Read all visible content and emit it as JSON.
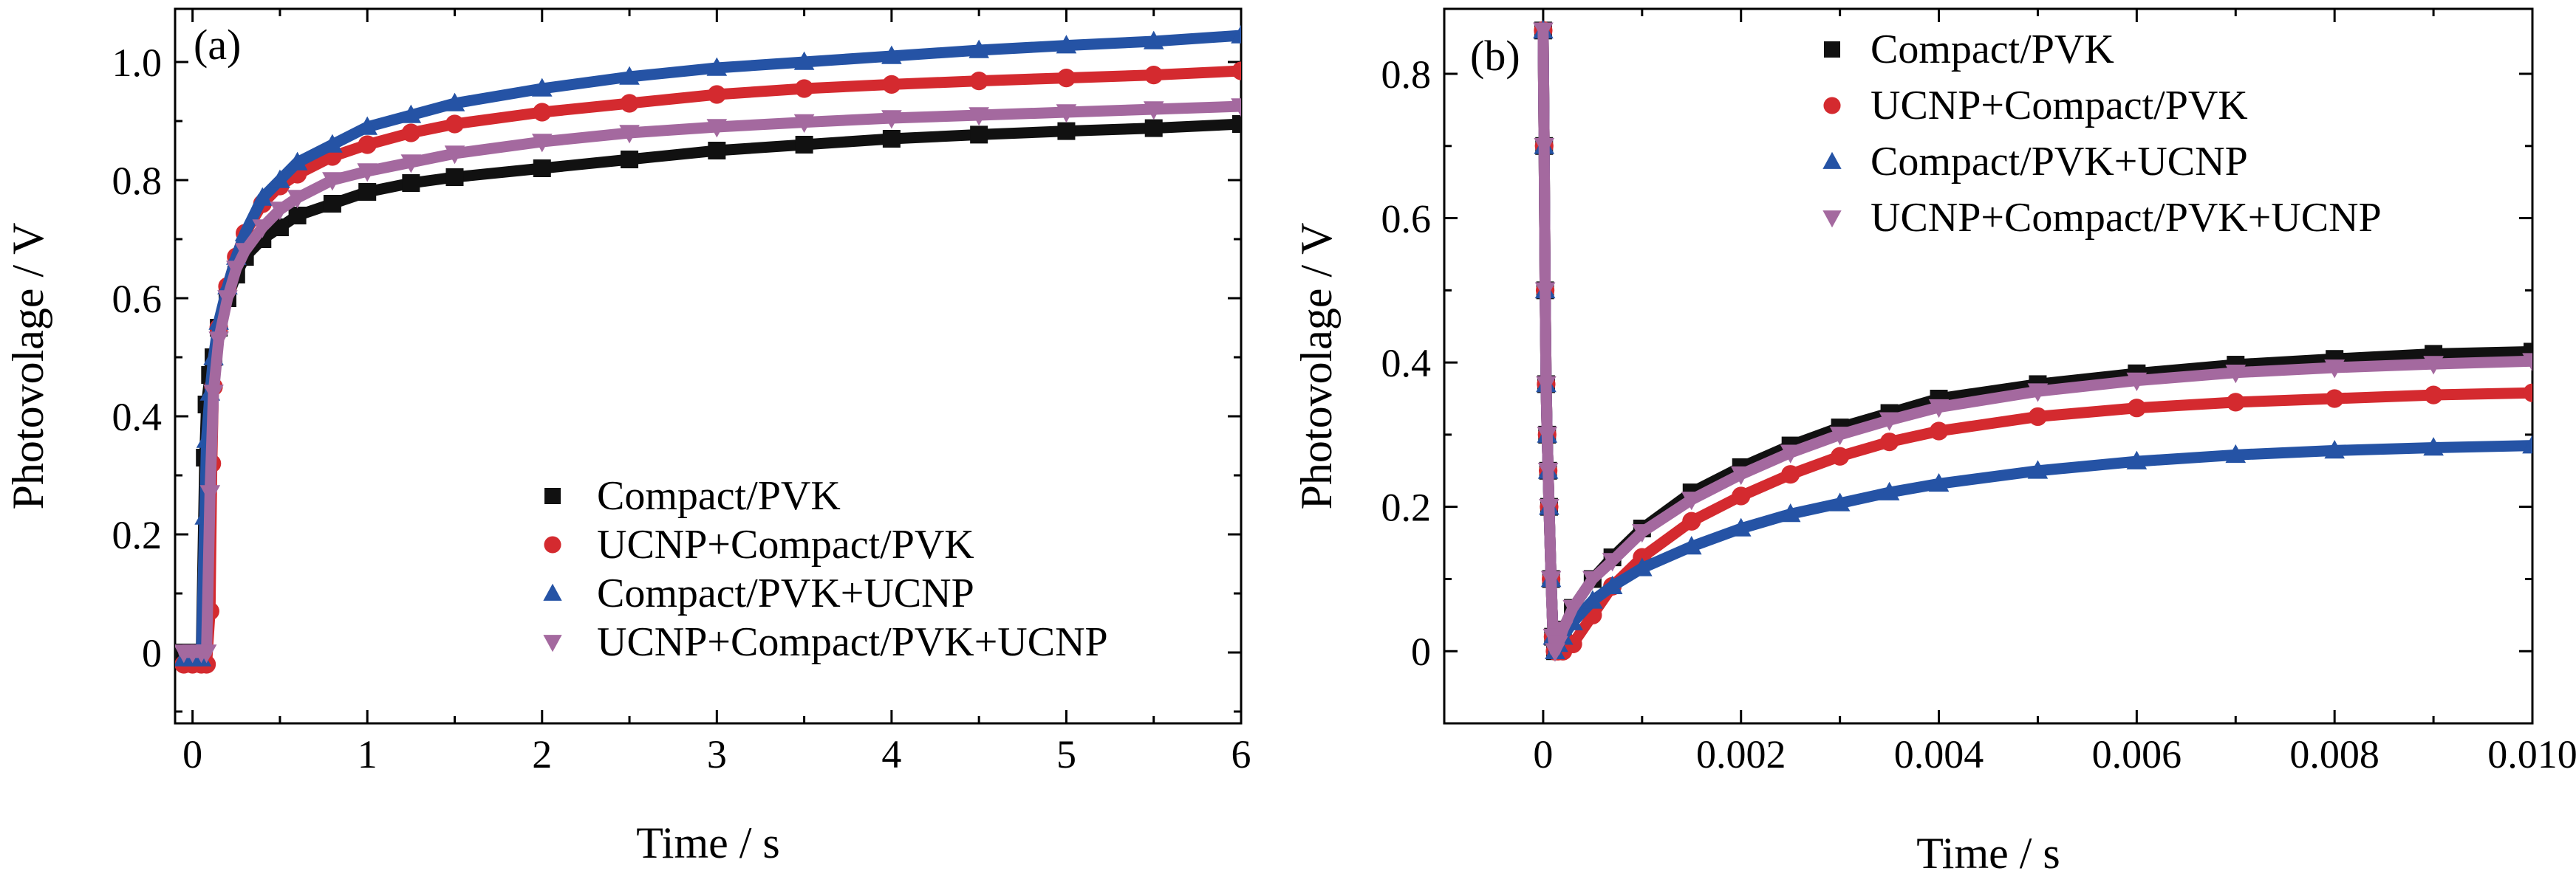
{
  "chart_data": [
    {
      "type": "scatter",
      "panel_label": "(a)",
      "xlabel": "Time / s",
      "ylabel": "Photovolage / V",
      "xlim": [
        -0.1,
        6
      ],
      "ylim": [
        -0.12,
        1.09
      ],
      "x_ticks": [
        0,
        1,
        2,
        3,
        4,
        5,
        6
      ],
      "x_tick_labels": [
        "0",
        "1",
        "2",
        "3",
        "4",
        "5",
        "6"
      ],
      "y_ticks": [
        0,
        0.2,
        0.4,
        0.6,
        0.8,
        1.0
      ],
      "y_tick_labels": [
        "0",
        "0.2",
        "0.4",
        "0.6",
        "0.8",
        "1.0"
      ],
      "grid": false,
      "legend_position": "bottom-right",
      "series": [
        {
          "name": "Compact/PVK",
          "marker": "square",
          "color": "#111111",
          "x": [
            -0.05,
            0.0,
            0.05,
            0.07,
            0.08,
            0.1,
            0.12,
            0.15,
            0.2,
            0.25,
            0.3,
            0.4,
            0.5,
            0.6,
            0.8,
            1.0,
            1.25,
            1.5,
            2.0,
            2.5,
            3.0,
            3.5,
            4.0,
            4.5,
            5.0,
            5.5,
            6.0
          ],
          "y": [
            0.0,
            0.0,
            0.0,
            0.33,
            0.42,
            0.47,
            0.5,
            0.55,
            0.6,
            0.64,
            0.67,
            0.7,
            0.72,
            0.74,
            0.76,
            0.78,
            0.795,
            0.805,
            0.82,
            0.835,
            0.85,
            0.86,
            0.87,
            0.877,
            0.883,
            0.888,
            0.895
          ]
        },
        {
          "name": "UCNP+Compact/PVK",
          "marker": "circle",
          "color": "#d42a2f",
          "x": [
            -0.05,
            0.0,
            0.05,
            0.08,
            0.1,
            0.11,
            0.12,
            0.15,
            0.2,
            0.25,
            0.3,
            0.4,
            0.5,
            0.6,
            0.8,
            1.0,
            1.25,
            1.5,
            2.0,
            2.5,
            3.0,
            3.5,
            4.0,
            4.5,
            5.0,
            5.5,
            6.0
          ],
          "y": [
            -0.02,
            -0.02,
            -0.02,
            -0.02,
            0.07,
            0.32,
            0.45,
            0.55,
            0.62,
            0.67,
            0.71,
            0.76,
            0.79,
            0.81,
            0.84,
            0.86,
            0.88,
            0.895,
            0.915,
            0.93,
            0.945,
            0.955,
            0.962,
            0.968,
            0.973,
            0.978,
            0.985
          ]
        },
        {
          "name": "Compact/PVK+UCNP",
          "marker": "triangle-up",
          "color": "#2553a5",
          "x": [
            -0.05,
            0.0,
            0.05,
            0.07,
            0.08,
            0.1,
            0.12,
            0.15,
            0.2,
            0.25,
            0.3,
            0.4,
            0.5,
            0.6,
            0.8,
            1.0,
            1.25,
            1.5,
            2.0,
            2.5,
            3.0,
            3.5,
            4.0,
            4.5,
            5.0,
            5.5,
            6.0
          ],
          "y": [
            -0.01,
            -0.01,
            -0.01,
            0.23,
            0.36,
            0.44,
            0.5,
            0.56,
            0.62,
            0.67,
            0.71,
            0.77,
            0.8,
            0.83,
            0.86,
            0.89,
            0.91,
            0.93,
            0.955,
            0.975,
            0.99,
            1.0,
            1.01,
            1.02,
            1.028,
            1.035,
            1.045
          ]
        },
        {
          "name": "UCNP+Compact/PVK+UCNP",
          "marker": "triangle-down",
          "color": "#a4699f",
          "x": [
            -0.05,
            0.0,
            0.05,
            0.08,
            0.1,
            0.12,
            0.15,
            0.2,
            0.25,
            0.3,
            0.4,
            0.5,
            0.6,
            0.8,
            1.0,
            1.25,
            1.5,
            2.0,
            2.5,
            3.0,
            3.5,
            4.0,
            4.5,
            5.0,
            5.5,
            6.0
          ],
          "y": [
            0.0,
            0.0,
            0.0,
            0.0,
            0.27,
            0.44,
            0.53,
            0.6,
            0.65,
            0.68,
            0.72,
            0.75,
            0.77,
            0.8,
            0.815,
            0.83,
            0.845,
            0.865,
            0.88,
            0.89,
            0.898,
            0.905,
            0.91,
            0.915,
            0.92,
            0.925
          ]
        }
      ]
    },
    {
      "type": "scatter",
      "panel_label": "(b)",
      "xlabel": "Time / s",
      "ylabel": "Photovolage / V",
      "xlim": [
        -0.001,
        0.01
      ],
      "ylim": [
        -0.1,
        0.89
      ],
      "x_ticks": [
        0,
        0.002,
        0.004,
        0.006,
        0.008,
        0.01
      ],
      "x_tick_labels": [
        "0",
        "0.002",
        "0.004",
        "0.006",
        "0.008",
        "0.010"
      ],
      "y_ticks": [
        0,
        0.2,
        0.4,
        0.6,
        0.8
      ],
      "y_tick_labels": [
        "0",
        "0.2",
        "0.4",
        "0.6",
        "0.8"
      ],
      "grid": false,
      "legend_position": "top-right",
      "series": [
        {
          "name": "Compact/PVK",
          "marker": "square",
          "color": "#111111",
          "x": [
            0.0,
            1e-05,
            2e-05,
            3e-05,
            4e-05,
            5e-05,
            6e-05,
            8e-05,
            0.0001,
            0.00012,
            0.00015,
            0.0002,
            0.0003,
            0.0005,
            0.0007,
            0.001,
            0.0015,
            0.002,
            0.0025,
            0.003,
            0.0035,
            0.004,
            0.005,
            0.006,
            0.007,
            0.008,
            0.009,
            0.01
          ],
          "y": [
            0.86,
            0.7,
            0.5,
            0.37,
            0.3,
            0.25,
            0.2,
            0.1,
            0.02,
            0.0,
            0.01,
            0.03,
            0.06,
            0.1,
            0.13,
            0.17,
            0.22,
            0.255,
            0.285,
            0.31,
            0.33,
            0.35,
            0.37,
            0.385,
            0.397,
            0.405,
            0.412,
            0.415
          ]
        },
        {
          "name": "UCNP+Compact/PVK",
          "marker": "circle",
          "color": "#d42a2f",
          "x": [
            0.0,
            1e-05,
            2e-05,
            3e-05,
            4e-05,
            5e-05,
            6e-05,
            8e-05,
            0.0001,
            0.00012,
            0.00015,
            0.0002,
            0.0003,
            0.0005,
            0.0007,
            0.001,
            0.0015,
            0.002,
            0.0025,
            0.003,
            0.0035,
            0.004,
            0.005,
            0.006,
            0.007,
            0.008,
            0.009,
            0.01
          ],
          "y": [
            0.86,
            0.7,
            0.5,
            0.37,
            0.3,
            0.25,
            0.2,
            0.1,
            0.02,
            0.0,
            0.0,
            0.0,
            0.01,
            0.05,
            0.09,
            0.13,
            0.18,
            0.215,
            0.245,
            0.27,
            0.29,
            0.305,
            0.325,
            0.337,
            0.345,
            0.35,
            0.355,
            0.358
          ]
        },
        {
          "name": "Compact/PVK+UCNP",
          "marker": "triangle-up",
          "color": "#2553a5",
          "x": [
            0.0,
            1e-05,
            2e-05,
            3e-05,
            4e-05,
            5e-05,
            6e-05,
            8e-05,
            0.0001,
            0.00012,
            0.00015,
            0.0002,
            0.0003,
            0.0005,
            0.0007,
            0.001,
            0.0015,
            0.002,
            0.0025,
            0.003,
            0.0035,
            0.004,
            0.005,
            0.006,
            0.007,
            0.008,
            0.009,
            0.01
          ],
          "y": [
            0.86,
            0.7,
            0.5,
            0.37,
            0.3,
            0.25,
            0.2,
            0.1,
            0.02,
            0.0,
            0.01,
            0.02,
            0.04,
            0.07,
            0.09,
            0.115,
            0.145,
            0.17,
            0.19,
            0.205,
            0.22,
            0.232,
            0.25,
            0.263,
            0.272,
            0.278,
            0.282,
            0.285
          ]
        },
        {
          "name": "UCNP+Compact/PVK+UCNP",
          "marker": "triangle-down",
          "color": "#a4699f",
          "x": [
            0.0,
            1e-05,
            2e-05,
            3e-05,
            4e-05,
            5e-05,
            6e-05,
            8e-05,
            0.0001,
            0.00012,
            0.00015,
            0.0002,
            0.0003,
            0.0005,
            0.0007,
            0.001,
            0.0015,
            0.002,
            0.0025,
            0.003,
            0.0035,
            0.004,
            0.005,
            0.006,
            0.007,
            0.008,
            0.009,
            0.01
          ],
          "y": [
            0.86,
            0.7,
            0.5,
            0.37,
            0.3,
            0.25,
            0.2,
            0.1,
            0.02,
            0.0,
            0.01,
            0.03,
            0.06,
            0.1,
            0.125,
            0.165,
            0.21,
            0.245,
            0.275,
            0.3,
            0.32,
            0.338,
            0.36,
            0.375,
            0.386,
            0.393,
            0.398,
            0.402
          ]
        }
      ]
    }
  ]
}
